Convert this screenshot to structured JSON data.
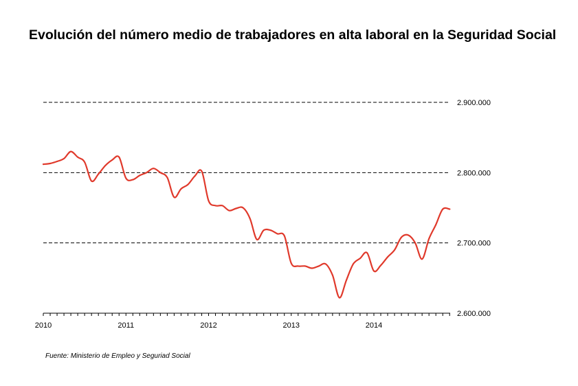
{
  "title": "Evolución del número medio de trabajadores en alta laboral en la Seguridad Social",
  "source": "Fuente: Ministerio de Empleo y Seguriad Social",
  "chart_data": {
    "type": "line",
    "title": "Evolución del número medio de trabajadores en alta laboral en la Seguridad Social",
    "xlabel": "",
    "ylabel": "",
    "xlim": [
      2010,
      2014.917
    ],
    "ylim": [
      2600000,
      2900000
    ],
    "x_ticks": [
      {
        "value": 2010,
        "label": "2010"
      },
      {
        "value": 2011,
        "label": "2011"
      },
      {
        "value": 2012,
        "label": "2012"
      },
      {
        "value": 2013,
        "label": "2013"
      },
      {
        "value": 2014,
        "label": "2014"
      }
    ],
    "y_ticks": [
      {
        "value": 2600000,
        "label": "2.600.000"
      },
      {
        "value": 2700000,
        "label": "2.700.000"
      },
      {
        "value": 2800000,
        "label": "2.800.000"
      },
      {
        "value": 2900000,
        "label": "2.900.000"
      }
    ],
    "y_axis_side": "right",
    "grid": "horizontal dashed",
    "legend": "none",
    "color": "#e0392b",
    "series": [
      {
        "name": "",
        "x": [
          2010.0,
          2010.083,
          2010.167,
          2010.25,
          2010.333,
          2010.417,
          2010.5,
          2010.583,
          2010.667,
          2010.75,
          2010.833,
          2010.917,
          2011.0,
          2011.083,
          2011.167,
          2011.25,
          2011.333,
          2011.417,
          2011.5,
          2011.583,
          2011.667,
          2011.75,
          2011.833,
          2011.917,
          2012.0,
          2012.083,
          2012.167,
          2012.25,
          2012.333,
          2012.417,
          2012.5,
          2012.583,
          2012.667,
          2012.75,
          2012.833,
          2012.917,
          2013.0,
          2013.083,
          2013.167,
          2013.25,
          2013.333,
          2013.417,
          2013.5,
          2013.583,
          2013.667,
          2013.75,
          2013.833,
          2013.917,
          2014.0,
          2014.083,
          2014.167,
          2014.25,
          2014.333,
          2014.417,
          2014.5,
          2014.583,
          2014.667,
          2014.75,
          2014.833,
          2014.917
        ],
        "y": [
          2812000,
          2813000,
          2816000,
          2820000,
          2830000,
          2822000,
          2815000,
          2788000,
          2798000,
          2810000,
          2818000,
          2822000,
          2792000,
          2790000,
          2796000,
          2800000,
          2806000,
          2800000,
          2793000,
          2765000,
          2777000,
          2783000,
          2795000,
          2802000,
          2760000,
          2753000,
          2753000,
          2746000,
          2749000,
          2750000,
          2735000,
          2705000,
          2718000,
          2718000,
          2713000,
          2710000,
          2671000,
          2667000,
          2667000,
          2664000,
          2667000,
          2670000,
          2654000,
          2622000,
          2647000,
          2670000,
          2678000,
          2686000,
          2660000,
          2668000,
          2680000,
          2690000,
          2708000,
          2711000,
          2700000,
          2677000,
          2706000,
          2726000,
          2748000,
          2748000
        ]
      }
    ]
  }
}
